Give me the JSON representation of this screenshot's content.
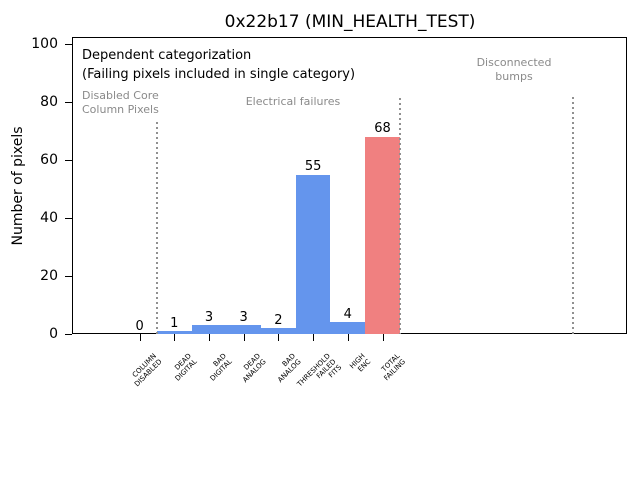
{
  "chart_data": {
    "type": "bar",
    "title": "0x22b17 (MIN_HEALTH_TEST)",
    "xlabel": "",
    "ylabel": "Number of pixels",
    "ylim": [
      0,
      102
    ],
    "yticks": [
      0,
      20,
      40,
      60,
      80,
      100
    ],
    "grid": false,
    "legend": null,
    "categories": [
      "COLUMN\nDISABLED",
      "DEAD\nDIGITAL",
      "BAD\nDIGITAL",
      "DEAD\nANALOG",
      "BAD\nANALOG",
      "THRESHOLD\nFAILED\nFITS",
      "HIGH\nENC",
      "TOTAL\nFAILING"
    ],
    "values": [
      0,
      1,
      3,
      3,
      2,
      55,
      4,
      68
    ],
    "bar_colors": [
      "#6495ed",
      "#6495ed",
      "#6495ed",
      "#6495ed",
      "#6495ed",
      "#6495ed",
      "#6495ed",
      "#f08080"
    ],
    "annotations": {
      "line1": "Dependent categorization",
      "line2": "(Failing pixels included in single category)"
    },
    "regions": {
      "left": "Disabled Core\nColumn Pixels",
      "middle": "Electrical failures",
      "right": "Disconnected\nbumps"
    },
    "separator_positions": [
      0.5,
      7.5,
      12.5
    ],
    "colors": {
      "bar_default": "#6495ed",
      "bar_total": "#f08080",
      "region_text": "#8a8a8a",
      "separator": "#909090",
      "axis": "#000000"
    }
  }
}
